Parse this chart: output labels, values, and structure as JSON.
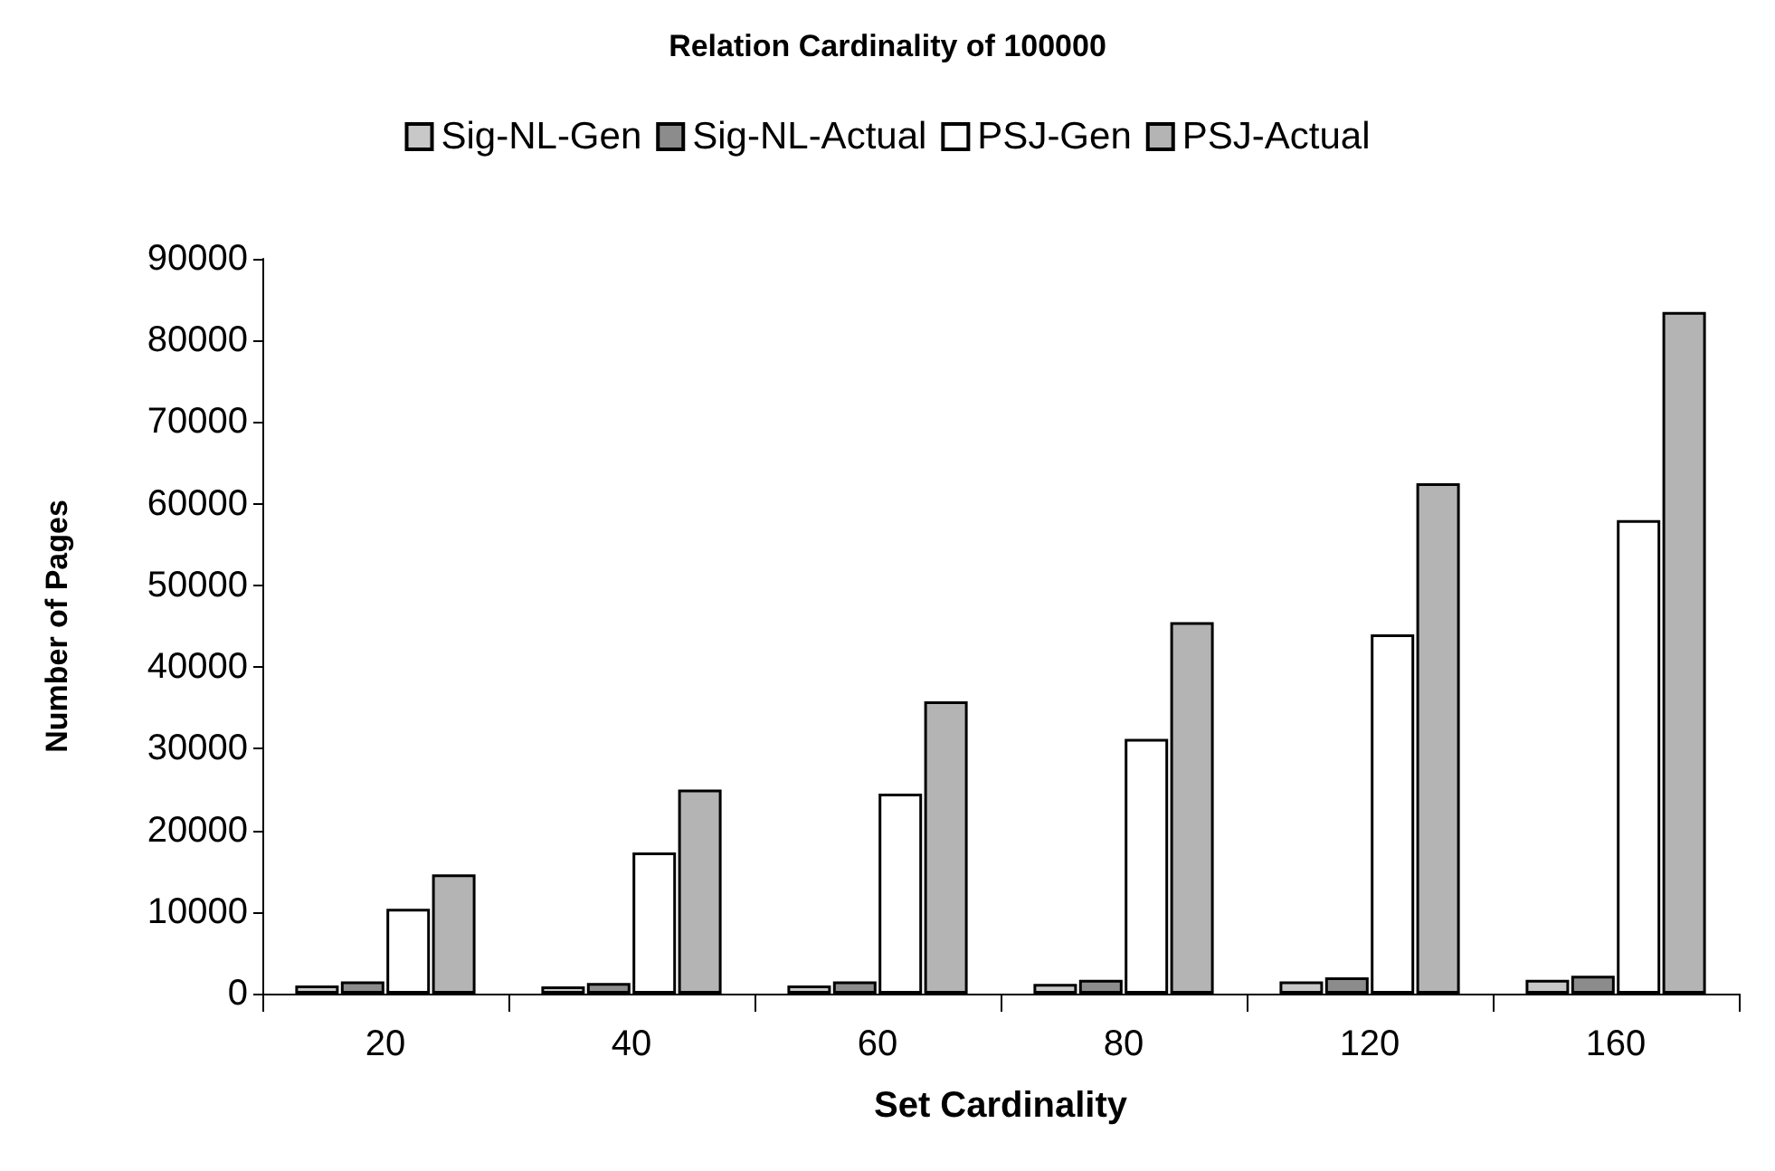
{
  "chart_data": {
    "type": "bar",
    "title": "Relation Cardinality of 100000",
    "xlabel": "Set Cardinality",
    "ylabel": "Number of Pages",
    "categories": [
      "20",
      "40",
      "60",
      "80",
      "120",
      "160"
    ],
    "series": [
      {
        "name": "Sig-NL-Gen",
        "color": "#c8c8c8",
        "values": [
          1000,
          900,
          1000,
          1200,
          1500,
          1700
        ]
      },
      {
        "name": "Sig-NL-Actual",
        "color": "#8c8c8c",
        "values": [
          1500,
          1300,
          1500,
          1700,
          2000,
          2200
        ]
      },
      {
        "name": "PSJ-Gen",
        "color": "#ffffff",
        "values": [
          10400,
          17300,
          24500,
          31200,
          44000,
          58000
        ]
      },
      {
        "name": "PSJ-Actual",
        "color": "#b4b4b4",
        "values": [
          14600,
          25000,
          35800,
          45500,
          62500,
          83500
        ]
      }
    ],
    "ylim": [
      0,
      90000
    ],
    "yticks": [
      0,
      10000,
      20000,
      30000,
      40000,
      50000,
      60000,
      70000,
      80000,
      90000
    ],
    "grid": false,
    "legend": "top"
  }
}
